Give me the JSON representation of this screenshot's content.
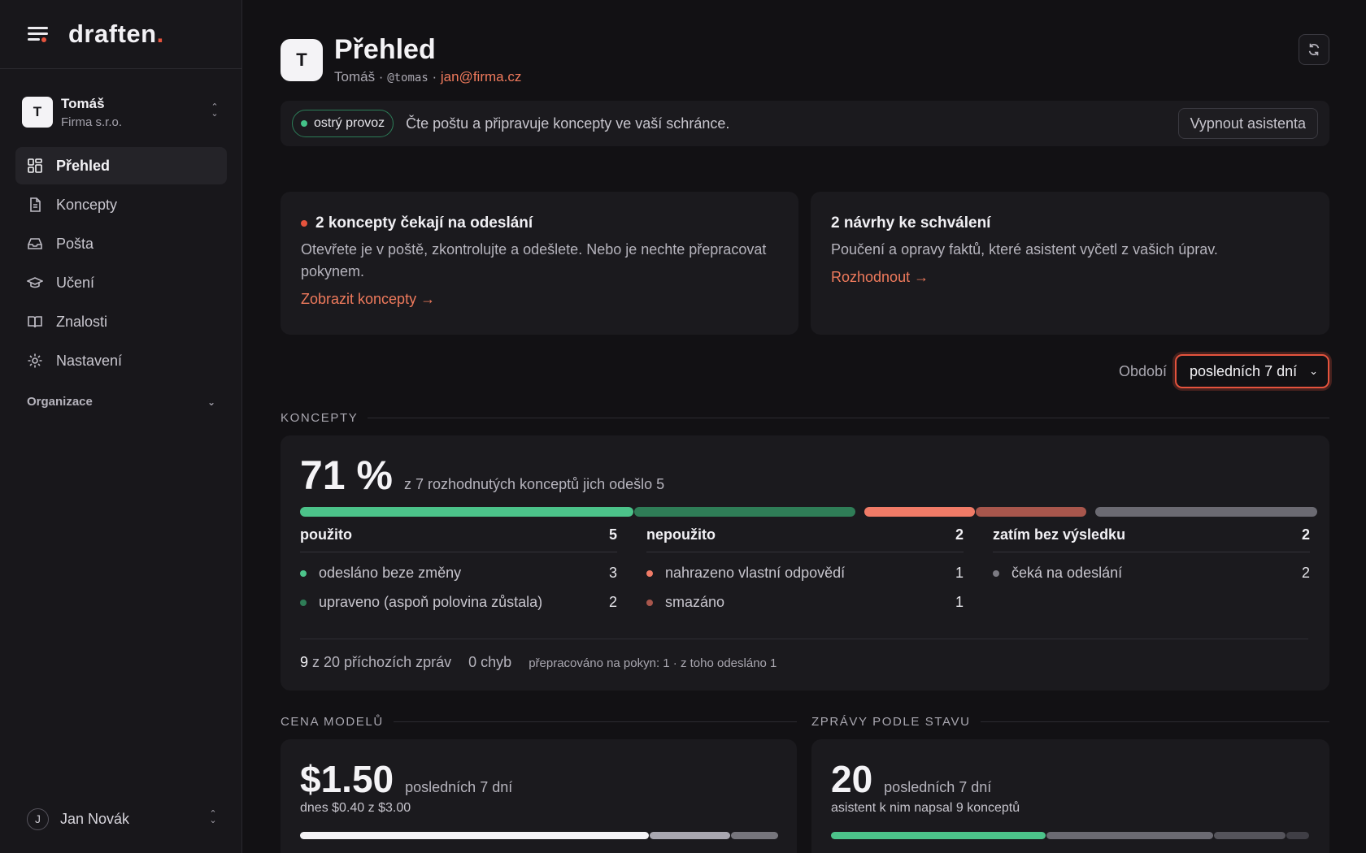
{
  "brand": {
    "name": "draften",
    "dot": "."
  },
  "org": {
    "avatar": "T",
    "name": "Tomáš",
    "company": "Firma s.r.o."
  },
  "nav": [
    {
      "label": "Přehled",
      "icon": "grid-icon",
      "active": true
    },
    {
      "label": "Koncepty",
      "icon": "document-icon"
    },
    {
      "label": "Pošta",
      "icon": "inbox-icon"
    },
    {
      "label": "Učení",
      "icon": "graduation-cap-icon"
    },
    {
      "label": "Znalosti",
      "icon": "book-icon"
    },
    {
      "label": "Nastavení",
      "icon": "gear-icon"
    }
  ],
  "org_section": "Organizace",
  "user": {
    "avatar": "J",
    "name": "Jan Novák"
  },
  "header": {
    "avatar": "T",
    "title": "Přehled",
    "name": "Tomáš",
    "separator": " · ",
    "handle": "@tomas",
    "email": "jan@firma.cz"
  },
  "status": {
    "badge": "ostrý provoz",
    "text": "Čte poštu a připravuje koncepty ve vaší schránce.",
    "button": "Vypnout asistenta"
  },
  "cards": {
    "drafts": {
      "title": "2 koncepty čekají na odeslání",
      "desc": "Otevřete je v poště, zkontrolujte a odešlete. Nebo je nechte přepracovat pokynem.",
      "link": "Zobrazit koncepty →"
    },
    "proposals": {
      "title": "2 návrhy ke schválení",
      "desc": "Poučení a opravy faktů, které asistent vyčetl z vašich úprav.",
      "link": "Rozhodnout →"
    }
  },
  "period": {
    "label": "Období",
    "value": "posledních 7 dní"
  },
  "sections": {
    "drafts": "KONCEPTY",
    "cost": "CENA MODELŮ",
    "messages": "ZPRÁVY PODLE STAVU"
  },
  "drafts_stats": {
    "percent": "71 %",
    "summary": "z 7 rozhodnutých konceptů jich odešlo 5",
    "bar": [
      {
        "name": "odesláno beze změny",
        "value": 3,
        "color": "#4cc38a"
      },
      {
        "name": "upraveno",
        "value": 2,
        "color": "#2f7d57"
      },
      {
        "name": "nahrazeno",
        "value": 1,
        "color": "#f07b67"
      },
      {
        "name": "smazáno",
        "value": 1,
        "color": "#a8564c"
      },
      {
        "name": "čeká na odeslání",
        "value": 2,
        "color": "#6b6a72"
      }
    ],
    "columns": [
      {
        "title": "použito",
        "count": "5",
        "rows": [
          {
            "label": "odesláno beze změny",
            "value": "3",
            "color": "#4cc38a"
          },
          {
            "label": "upraveno (aspoň polovina zůstala)",
            "value": "2",
            "color": "#2f7d57"
          }
        ]
      },
      {
        "title": "nepoužito",
        "count": "2",
        "rows": [
          {
            "label": "nahrazeno vlastní odpovědí",
            "value": "1",
            "color": "#f07b67"
          },
          {
            "label": "smazáno",
            "value": "1",
            "color": "#a8564c"
          }
        ]
      },
      {
        "title": "zatím bez výsledku",
        "count": "2",
        "rows": [
          {
            "label": "čeká na odeslání",
            "value": "2",
            "color": "#7b7a82"
          }
        ]
      }
    ],
    "footer": {
      "count": "9",
      "count_text": " z 20 příchozích zpráv",
      "errors": "0 chyb",
      "rework": "přepracováno na pokyn: 1 · z toho odesláno 1"
    }
  },
  "cost": {
    "value": "$1.50",
    "period": "posledních 7 dní",
    "sub": "dnes $0.40 z $3.00",
    "bar": [
      {
        "value": 0.73,
        "color": "#f4f3f6"
      },
      {
        "value": 0.17,
        "color": "#a9a7b0"
      },
      {
        "value": 0.1,
        "color": "#76757c"
      }
    ]
  },
  "messages": {
    "value": "20",
    "period": "posledních 7 dní",
    "sub": "asistent k nim napsal 9 konceptů",
    "bar": [
      {
        "value": 0.45,
        "color": "#4cc38a"
      },
      {
        "value": 0.35,
        "color": "#6b6a72"
      },
      {
        "value": 0.15,
        "color": "#55545b"
      },
      {
        "value": 0.05,
        "color": "#3f3e45"
      }
    ]
  }
}
